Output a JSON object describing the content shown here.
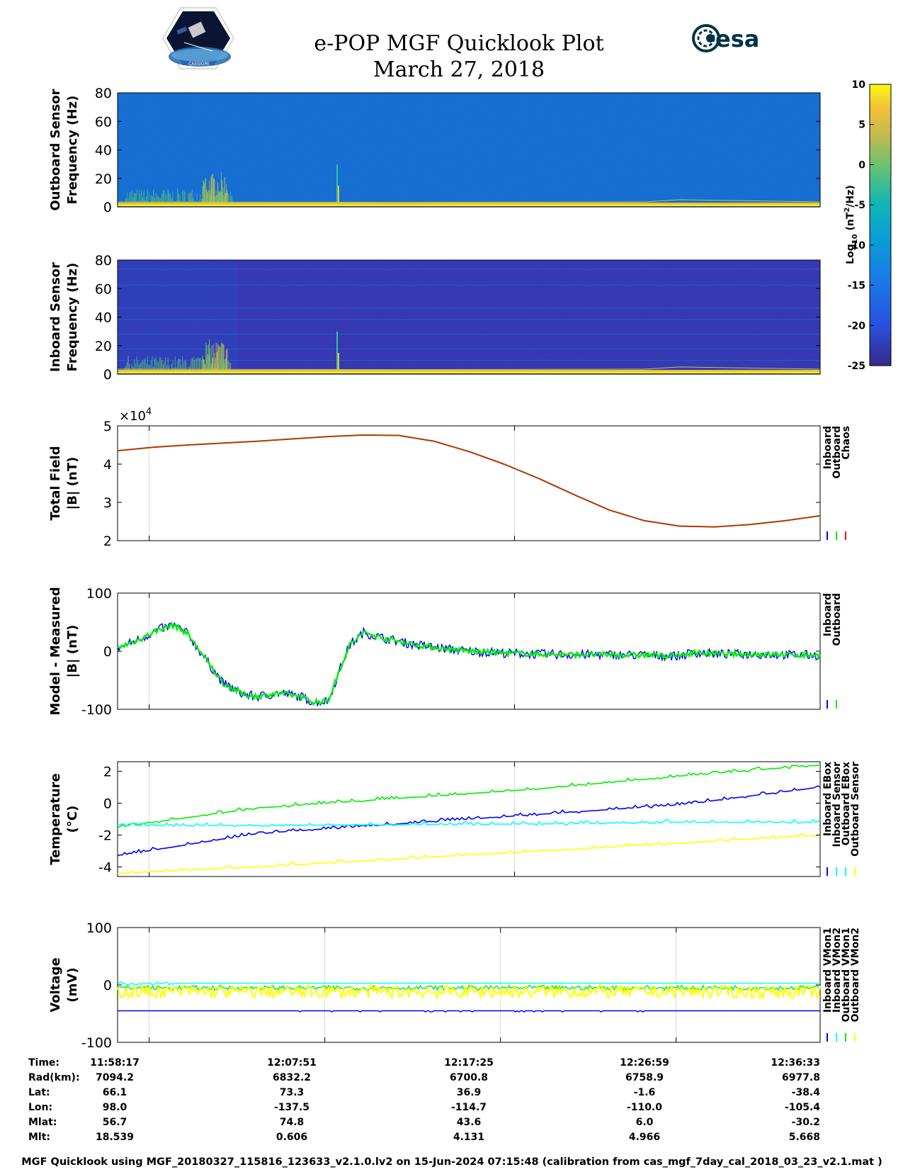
{
  "header": {
    "title_line1": "e-POP MGF Quicklook Plot",
    "title_line2": "March 27, 2018",
    "logo_left_text": "CASSIOPE",
    "logo_right_text": "esa"
  },
  "colors": {
    "inboard": "#0000ff",
    "outboard": "#00ee00",
    "chaos": "#ff0000",
    "cyan": "#00ffff",
    "yellow": "#ffff00",
    "total_field_line": "#b33a00"
  },
  "colorbar": {
    "label": "Log10 (nT2/Hz)",
    "ticks": [
      "10",
      "5",
      "0",
      "-5",
      "-10",
      "-15",
      "-20",
      "-25"
    ],
    "range": [
      -25,
      10
    ],
    "colormap": "parula"
  },
  "chart_data": [
    {
      "type": "heatmap",
      "name": "outboard-spectrogram",
      "ylabel": [
        "Outboard Sensor",
        "Frequency (Hz)"
      ],
      "yticks": [
        "80",
        "60",
        "40",
        "20",
        "0"
      ],
      "ylim": [
        0,
        80
      ],
      "background_level": -13,
      "background_color": "#1a79e6",
      "features": "strong low-frequency band (0–3 Hz); bursts near 11:59–12:00 and 12:01"
    },
    {
      "type": "heatmap",
      "name": "inboard-spectrogram",
      "ylabel": [
        "Inboard Sensor",
        "Frequency (Hz)"
      ],
      "yticks": [
        "80",
        "60",
        "40",
        "20",
        "0"
      ],
      "ylim": [
        0,
        80
      ],
      "background_level": -21,
      "background_color": "#3c3fc4",
      "features": "strong low-frequency band (0–3 Hz); bursts near 11:59–12:00 and 12:01; harmonic lines"
    },
    {
      "type": "line",
      "name": "total-field",
      "ylabel": [
        "Total Field",
        "|B| (nT)"
      ],
      "yticks": [
        "5",
        "4",
        "3",
        "2"
      ],
      "exponent_label": "×10",
      "exponent_power": "4",
      "ylim": [
        2,
        5
      ],
      "legend": [
        "Inboard",
        "Outboard",
        "Chaos"
      ],
      "x_fraction": [
        0,
        0.05,
        0.1,
        0.2,
        0.3,
        0.35,
        0.4,
        0.45,
        0.5,
        0.55,
        0.6,
        0.65,
        0.7,
        0.75,
        0.8,
        0.85,
        0.9,
        0.95,
        1.0
      ],
      "values": [
        4.35,
        4.44,
        4.5,
        4.6,
        4.72,
        4.76,
        4.75,
        4.6,
        4.33,
        4.0,
        3.62,
        3.2,
        2.8,
        2.52,
        2.38,
        2.36,
        2.42,
        2.52,
        2.65
      ]
    },
    {
      "type": "line",
      "name": "model-minus-measured",
      "ylabel": [
        "Model - Measured",
        "|B| (nT)"
      ],
      "yticks": [
        "100",
        "0",
        "-100"
      ],
      "ylim": [
        -100,
        100
      ],
      "legend": [
        "Inboard",
        "Outboard"
      ],
      "x_fraction": [
        0,
        0.03,
        0.06,
        0.08,
        0.1,
        0.12,
        0.15,
        0.18,
        0.2,
        0.23,
        0.26,
        0.28,
        0.3,
        0.32,
        0.33,
        0.35,
        0.38,
        0.42,
        0.46,
        0.5,
        0.55,
        0.6,
        0.65,
        0.7,
        0.75,
        0.8,
        0.82,
        0.84,
        0.86,
        0.9,
        0.95,
        1.0
      ],
      "values": [
        5,
        20,
        38,
        45,
        30,
        -5,
        -55,
        -75,
        -78,
        -72,
        -78,
        -88,
        -85,
        -20,
        10,
        32,
        22,
        12,
        5,
        0,
        -3,
        -5,
        -6,
        -6,
        -7,
        -8,
        -2,
        -4,
        -5,
        -5,
        -6,
        -7
      ]
    },
    {
      "type": "line",
      "name": "temperature",
      "ylabel": [
        "Temperature",
        "(°C)"
      ],
      "yticks": [
        "2",
        "0",
        "-2",
        "-4"
      ],
      "ylim": [
        -4.6,
        2.6
      ],
      "legend": [
        "Inboard EBox",
        "Inboard Sensor",
        "Outboard EBox",
        "Outboard Sensor"
      ],
      "series": [
        {
          "name": "Inboard EBox",
          "color": "#0000ff",
          "x_fraction": [
            0,
            0.2,
            0.4,
            0.6,
            0.8,
            1.0
          ],
          "values": [
            -3.3,
            -1.9,
            -1.3,
            -0.7,
            -0.1,
            1.0
          ]
        },
        {
          "name": "Outboard EBox",
          "color": "#00ee00",
          "x_fraction": [
            0,
            0.2,
            0.4,
            0.6,
            0.8,
            1.0
          ],
          "values": [
            -1.5,
            -0.3,
            0.3,
            0.9,
            1.7,
            2.4
          ]
        },
        {
          "name": "Inboard Sensor",
          "color": "#00ffff",
          "x_fraction": [
            0,
            0.2,
            0.4,
            0.6,
            0.8,
            1.0
          ],
          "values": [
            -1.4,
            -1.4,
            -1.35,
            -1.3,
            -1.2,
            -1.2
          ]
        },
        {
          "name": "Outboard Sensor",
          "color": "#ffff00",
          "x_fraction": [
            0,
            0.2,
            0.4,
            0.6,
            0.8,
            1.0
          ],
          "values": [
            -4.4,
            -4.0,
            -3.5,
            -3.0,
            -2.5,
            -2.0
          ]
        }
      ]
    },
    {
      "type": "line",
      "name": "voltage",
      "ylabel": [
        "Voltage",
        "(mV)"
      ],
      "yticks": [
        "100",
        "0",
        "-100"
      ],
      "ylim": [
        -100,
        100
      ],
      "legend": [
        "Inboard VMon1",
        "Inboard VMon2",
        "Outboard VMon1",
        "Outboard VMon2"
      ],
      "series": [
        {
          "name": "Inboard VMon1",
          "color": "#0000ff",
          "value": -45
        },
        {
          "name": "Inboard VMon2",
          "color": "#00ffff",
          "value": 3
        },
        {
          "name": "Outboard VMon1",
          "color": "#00ee00",
          "value": -5
        },
        {
          "name": "Outboard VMon2",
          "color": "#ffff00",
          "value": -12
        }
      ]
    }
  ],
  "orbit_table": {
    "labels": [
      "Time:",
      "Rad(km):",
      "Lat:",
      "Lon:",
      "Mlat:",
      "Mlt:"
    ],
    "columns": [
      [
        "11:58:17",
        "7094.2",
        "66.1",
        "98.0",
        "56.7",
        "18.539"
      ],
      [
        "12:07:51",
        "6832.2",
        "73.3",
        "-137.5",
        "74.8",
        "0.606"
      ],
      [
        "12:17:25",
        "6700.8",
        "36.9",
        "-114.7",
        "43.6",
        "4.131"
      ],
      [
        "12:26:59",
        "6758.9",
        "-1.6",
        "-110.0",
        "6.0",
        "4.966"
      ],
      [
        "12:36:33",
        "6977.8",
        "-38.4",
        "-105.4",
        "-30.2",
        "5.668"
      ]
    ]
  },
  "footer": {
    "text": "MGF Quicklook using MGF_20180327_115816_123633_v2.1.0.lv2 on 15-Jun-2024 07:15:48 (calibration from cas_mgf_7day_cal_2018_03_23_v2.1.mat )"
  }
}
